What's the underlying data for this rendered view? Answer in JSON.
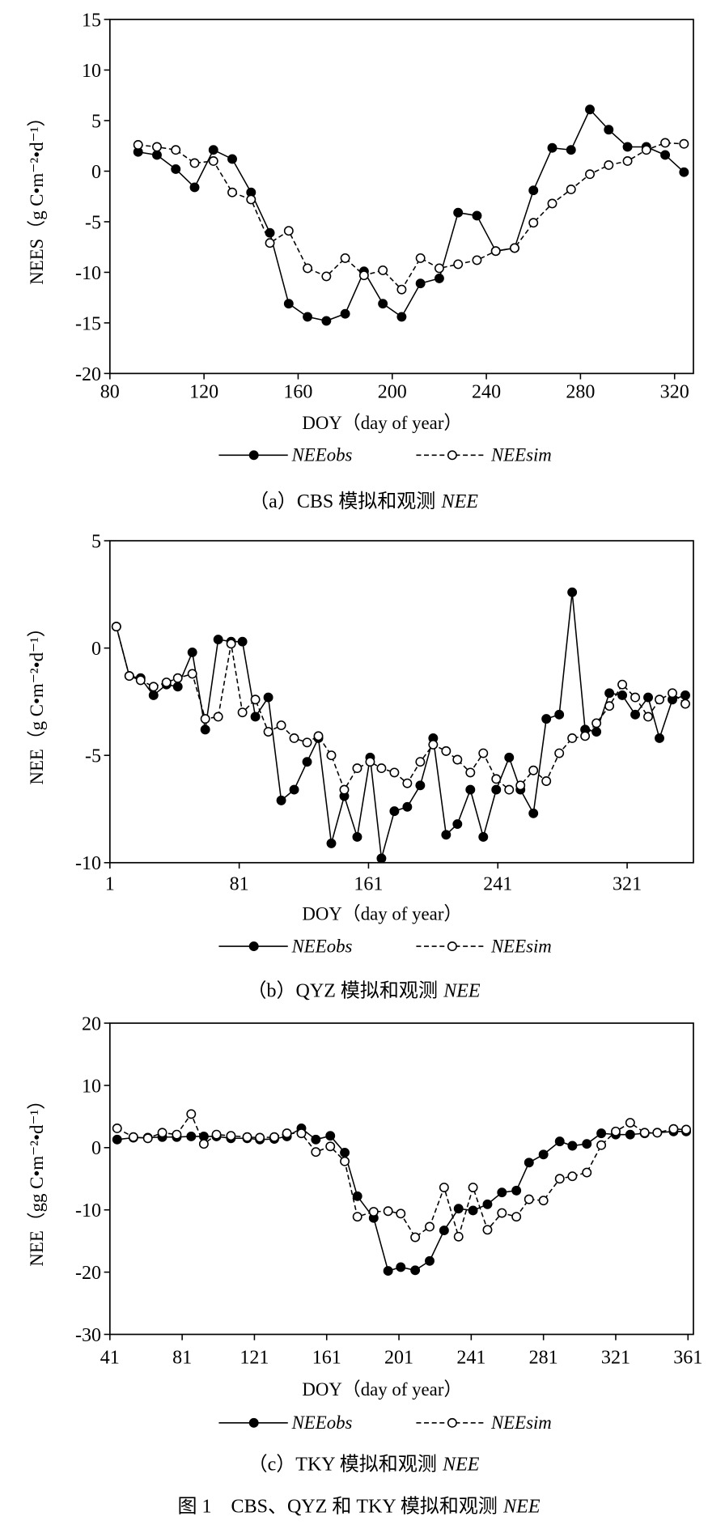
{
  "figure_caption": {
    "text": "图 1　CBS、QYZ 和 TKY 模拟和观测",
    "emph": "NEE"
  },
  "chart_data": [
    {
      "type": "line",
      "xlabel": "DOY（day of year）",
      "ylabel": "NEES（g C•m⁻²•d⁻¹）",
      "xlim": [
        80,
        328
      ],
      "ylim": [
        -20,
        15
      ],
      "xticks": [
        80,
        120,
        160,
        200,
        240,
        280,
        320
      ],
      "yticks": [
        15,
        10,
        5,
        0,
        -5,
        -10,
        -15,
        -20
      ],
      "grid": false,
      "legend_position": "bottom",
      "x": [
        92,
        100,
        108,
        116,
        124,
        132,
        140,
        148,
        156,
        164,
        172,
        180,
        188,
        196,
        204,
        212,
        220,
        228,
        236,
        244,
        252,
        260,
        268,
        276,
        284,
        292,
        300,
        308,
        316,
        324
      ],
      "series": [
        {
          "name": "NEEobs",
          "color": "#000000",
          "dashed": false,
          "marker_filled": true,
          "values": [
            1.9,
            1.6,
            0.2,
            -1.6,
            2.1,
            1.2,
            -2.1,
            -6.1,
            -13.1,
            -14.4,
            -14.8,
            -14.1,
            -9.9,
            -13.1,
            -14.4,
            -11.1,
            -10.6,
            -4.1,
            -4.4,
            -7.9,
            -7.6,
            -1.9,
            2.3,
            2.1,
            6.1,
            4.1,
            2.4,
            2.4,
            1.6,
            -0.1
          ]
        },
        {
          "name": "NEEsim",
          "color": "#000000",
          "dashed": true,
          "marker_filled": false,
          "values": [
            2.6,
            2.4,
            2.1,
            0.8,
            1.0,
            -2.1,
            -2.8,
            -7.1,
            -5.9,
            -9.6,
            -10.4,
            -8.6,
            -10.3,
            -9.8,
            -11.7,
            -8.6,
            -9.6,
            -9.2,
            -8.8,
            -7.9,
            -7.6,
            -5.1,
            -3.2,
            -1.8,
            -0.3,
            0.6,
            1.0,
            2.1,
            2.8,
            2.7
          ]
        }
      ],
      "caption": {
        "text": "（a）CBS 模拟和观测",
        "emph": "NEE"
      }
    },
    {
      "type": "line",
      "xlabel": "DOY（day of year）",
      "ylabel": "NEE（g C•m⁻²•d⁻¹）",
      "xlim": [
        1,
        362
      ],
      "ylim": [
        -10,
        5
      ],
      "xticks": [
        1,
        81,
        161,
        241,
        321
      ],
      "yticks": [
        5,
        0,
        -5,
        -10
      ],
      "grid": false,
      "legend_position": "bottom",
      "x": [
        5,
        13,
        20,
        28,
        36,
        43,
        52,
        60,
        68,
        76,
        83,
        91,
        99,
        107,
        115,
        123,
        130,
        138,
        146,
        154,
        162,
        169,
        177,
        185,
        193,
        201,
        209,
        216,
        224,
        232,
        240,
        248,
        255,
        263,
        271,
        279,
        287,
        295,
        302,
        310,
        318,
        326,
        334,
        341,
        349,
        357
      ],
      "series": [
        {
          "name": "NEEobs",
          "color": "#000000",
          "dashed": false,
          "marker_filled": true,
          "values": [
            1.0,
            -1.3,
            -1.4,
            -2.2,
            -1.7,
            -1.8,
            -0.2,
            -3.8,
            0.4,
            0.3,
            0.3,
            -3.2,
            -2.3,
            -7.1,
            -6.6,
            -5.3,
            -4.2,
            -9.1,
            -6.9,
            -8.8,
            -5.1,
            -9.8,
            -7.6,
            -7.4,
            -6.4,
            -4.2,
            -8.7,
            -8.2,
            -6.6,
            -8.8,
            -6.6,
            -5.1,
            -6.6,
            -7.7,
            -3.3,
            -3.1,
            2.6,
            -3.8,
            -3.9,
            -2.1,
            -2.2,
            -3.1,
            -2.3,
            -4.2,
            -2.4,
            -2.2
          ]
        },
        {
          "name": "NEEsim",
          "color": "#000000",
          "dashed": true,
          "marker_filled": false,
          "values": [
            1.0,
            -1.3,
            -1.5,
            -1.8,
            -1.6,
            -1.4,
            -1.2,
            -3.3,
            -3.2,
            0.2,
            -3.0,
            -2.4,
            -3.9,
            -3.6,
            -4.2,
            -4.4,
            -4.1,
            -5.0,
            -6.6,
            -5.6,
            -5.3,
            -5.6,
            -5.8,
            -6.3,
            -5.3,
            -4.5,
            -4.8,
            -5.2,
            -5.8,
            -4.9,
            -6.1,
            -6.6,
            -6.4,
            -5.7,
            -6.2,
            -4.9,
            -4.2,
            -4.1,
            -3.5,
            -2.7,
            -1.7,
            -2.3,
            -3.2,
            -2.4,
            -2.1,
            -2.6
          ]
        }
      ],
      "caption": {
        "text": "（b）QYZ 模拟和观测",
        "emph": "NEE"
      }
    },
    {
      "type": "line",
      "xlabel": "DOY（day of year）",
      "ylabel": "NEE（gg C•m⁻²•d⁻¹）",
      "xlim": [
        41,
        364
      ],
      "ylim": [
        -30,
        20
      ],
      "xticks": [
        41,
        81,
        121,
        161,
        201,
        241,
        281,
        321,
        361
      ],
      "yticks": [
        20,
        10,
        0,
        -10,
        -20,
        -30
      ],
      "grid": false,
      "legend_position": "bottom",
      "x": [
        45,
        54,
        62,
        70,
        78,
        86,
        93,
        100,
        108,
        117,
        124,
        132,
        139,
        147,
        155,
        163,
        171,
        178,
        187,
        195,
        202,
        210,
        218,
        226,
        234,
        242,
        250,
        258,
        266,
        273,
        281,
        290,
        297,
        305,
        313,
        321,
        329,
        337,
        344,
        353,
        360
      ],
      "series": [
        {
          "name": "NEEobs",
          "color": "#000000",
          "dashed": false,
          "marker_filled": true,
          "values": [
            1.3,
            1.6,
            1.6,
            1.7,
            1.7,
            1.8,
            1.8,
            1.8,
            1.5,
            1.5,
            1.3,
            1.4,
            1.8,
            3.1,
            1.3,
            1.9,
            -0.8,
            -7.8,
            -11.3,
            -19.8,
            -19.2,
            -19.7,
            -18.2,
            -13.3,
            -9.8,
            -10.1,
            -9.1,
            -7.2,
            -6.9,
            -2.4,
            -1.1,
            1.0,
            0.3,
            0.6,
            2.3,
            2.1,
            2.1,
            2.3,
            2.4,
            2.6,
            2.6
          ]
        },
        {
          "name": "NEEsim",
          "color": "#000000",
          "dashed": true,
          "marker_filled": false,
          "values": [
            3.1,
            1.7,
            1.5,
            2.4,
            2.1,
            5.4,
            0.6,
            2.1,
            1.9,
            1.7,
            1.6,
            1.7,
            2.3,
            2.3,
            -0.7,
            0.2,
            -2.2,
            -11.1,
            -10.3,
            -10.2,
            -10.6,
            -14.4,
            -12.7,
            -6.4,
            -14.3,
            -6.4,
            -13.2,
            -10.5,
            -11.1,
            -8.3,
            -8.5,
            -5.0,
            -4.6,
            -4.0,
            0.4,
            2.6,
            4.0,
            2.4,
            2.4,
            3.0,
            2.9
          ]
        }
      ],
      "caption": {
        "text": "（c）TKY 模拟和观测",
        "emph": "NEE"
      }
    }
  ]
}
